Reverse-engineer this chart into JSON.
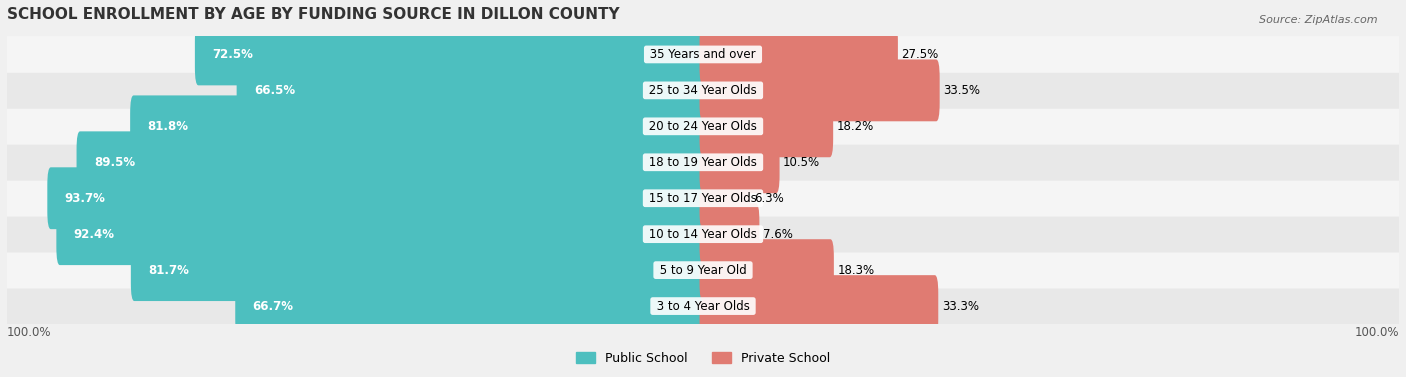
{
  "title": "SCHOOL ENROLLMENT BY AGE BY FUNDING SOURCE IN DILLON COUNTY",
  "source": "Source: ZipAtlas.com",
  "categories": [
    "3 to 4 Year Olds",
    "5 to 9 Year Old",
    "10 to 14 Year Olds",
    "15 to 17 Year Olds",
    "18 to 19 Year Olds",
    "20 to 24 Year Olds",
    "25 to 34 Year Olds",
    "35 Years and over"
  ],
  "public_values": [
    66.7,
    81.7,
    92.4,
    93.7,
    89.5,
    81.8,
    66.5,
    72.5
  ],
  "private_values": [
    33.3,
    18.3,
    7.6,
    6.3,
    10.5,
    18.2,
    33.5,
    27.5
  ],
  "public_color": "#4dbfbf",
  "private_color": "#e07b72",
  "background_color": "#f0f0f0",
  "bar_bg_color": "#ffffff",
  "row_bg_colors": [
    "#e8e8e8",
    "#f5f5f5"
  ],
  "title_fontsize": 11,
  "label_fontsize": 8.5,
  "value_fontsize": 8.5,
  "legend_fontsize": 9,
  "source_fontsize": 8,
  "y_axis_label_left": "100.0%",
  "y_axis_label_right": "100.0%"
}
